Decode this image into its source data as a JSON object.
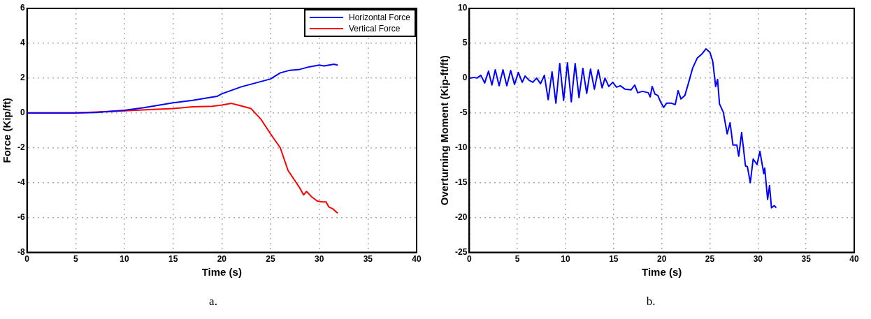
{
  "chart_data": [
    {
      "type": "line",
      "xlabel": "Time (s)",
      "ylabel": "Force (Kip/ft)",
      "xlim": [
        0,
        40
      ],
      "xticks": [
        0,
        5,
        10,
        15,
        20,
        25,
        30,
        35,
        40
      ],
      "ylim": [
        -8,
        6
      ],
      "yticks": [
        -8,
        -6,
        -4,
        -2,
        0,
        2,
        4,
        6
      ],
      "grid": true,
      "legend": "top right",
      "marker": "none",
      "line_style": "solid",
      "annotations": [
        "a."
      ],
      "series": [
        {
          "name": "Horizontal Force",
          "color": "#0000ff",
          "x": [
            0,
            5,
            7,
            10,
            12,
            15,
            17,
            19.5,
            20,
            22,
            24,
            25,
            26,
            27,
            28,
            29,
            30,
            30.5,
            31,
            31.5,
            31.9
          ],
          "values": [
            0,
            0,
            0.02,
            0.15,
            0.3,
            0.58,
            0.72,
            0.95,
            1.1,
            1.5,
            1.8,
            1.95,
            2.3,
            2.45,
            2.5,
            2.65,
            2.75,
            2.7,
            2.75,
            2.8,
            2.75
          ]
        },
        {
          "name": "Vertical Force",
          "color": "#ff0000",
          "x": [
            0,
            5,
            10,
            13,
            15,
            17,
            19,
            20,
            21,
            22,
            23,
            24,
            25,
            26,
            26.8,
            27.4,
            28,
            28.4,
            28.7,
            29.2,
            29.8,
            30.3,
            30.7,
            31,
            31.4,
            31.9
          ],
          "values": [
            0,
            0,
            0.12,
            0.2,
            0.25,
            0.35,
            0.38,
            0.45,
            0.55,
            0.4,
            0.25,
            -0.35,
            -1.2,
            -2,
            -3.3,
            -3.8,
            -4.3,
            -4.7,
            -4.5,
            -4.8,
            -5.05,
            -5.1,
            -5.1,
            -5.4,
            -5.5,
            -5.75
          ]
        }
      ]
    },
    {
      "type": "line",
      "xlabel": "Time (s)",
      "ylabel": "Overturning Moment (Kip-ft/ft)",
      "xlim": [
        0,
        40
      ],
      "xticks": [
        0,
        5,
        10,
        15,
        20,
        25,
        30,
        35,
        40
      ],
      "ylim": [
        -25,
        10
      ],
      "yticks": [
        -25,
        -20,
        -15,
        -10,
        -5,
        0,
        5,
        10
      ],
      "grid": true,
      "legend": false,
      "marker": "none",
      "line_style": "solid",
      "annotations": [
        "b."
      ],
      "series": [
        {
          "color": "#0000ff",
          "x": [
            0,
            0.5,
            0.8,
            1.2,
            1.6,
            2,
            2.35,
            2.7,
            3.1,
            3.5,
            3.9,
            4.3,
            4.7,
            5.1,
            5.5,
            5.8,
            6.2,
            6.6,
            7,
            7.4,
            7.8,
            8.2,
            8.6,
            9,
            9.4,
            9.8,
            10.2,
            10.6,
            11,
            11.4,
            11.8,
            12.2,
            12.6,
            13,
            13.4,
            13.8,
            14.1,
            14.5,
            14.9,
            15.3,
            15.7,
            16.2,
            16.8,
            17.2,
            17.5,
            18,
            18.6,
            18.8,
            19,
            19.3,
            19.6,
            19.9,
            20.2,
            20.5,
            21,
            21.4,
            21.7,
            22,
            22.4,
            22.8,
            23.2,
            23.7,
            24.2,
            24.6,
            25,
            25.3,
            25.6,
            25.8,
            26,
            26.4,
            26.8,
            27.1,
            27.4,
            27.8,
            28,
            28.3,
            28.7,
            28.9,
            29.2,
            29.5,
            29.9,
            30.2,
            30.6,
            30.7,
            31,
            31.2,
            31.4,
            31.7,
            31.9
          ],
          "values": [
            0,
            0.1,
            0,
            0.4,
            -0.7,
            1,
            -1,
            1.2,
            -1.1,
            1.2,
            -1.1,
            1.1,
            -0.9,
            0.8,
            -0.6,
            0.3,
            -0.3,
            -0.6,
            0,
            -0.8,
            0.4,
            -3.1,
            0.9,
            -3.6,
            2.1,
            -3.2,
            2.2,
            -3.4,
            2.1,
            -2.8,
            1.4,
            -2.2,
            1.3,
            -1.6,
            1.2,
            -1.4,
            0,
            -1.2,
            -0.6,
            -1.3,
            -1.1,
            -1.6,
            -1.7,
            -1,
            -2.1,
            -1.9,
            -2.1,
            -2.7,
            -1.2,
            -2.3,
            -2.5,
            -3.5,
            -4.2,
            -3.6,
            -3.6,
            -3.8,
            -1.8,
            -3,
            -2.5,
            -0.6,
            1.4,
            2.9,
            3.5,
            4.2,
            3.7,
            2.4,
            -1.2,
            -0.2,
            -3.7,
            -4.9,
            -8,
            -6.4,
            -9.6,
            -9.6,
            -11.2,
            -7.8,
            -12.6,
            -12.7,
            -15,
            -11.6,
            -12.4,
            -10.5,
            -13.7,
            -12.9,
            -17.4,
            -15.4,
            -18.6,
            -18.3,
            -18.6
          ]
        }
      ]
    }
  ]
}
